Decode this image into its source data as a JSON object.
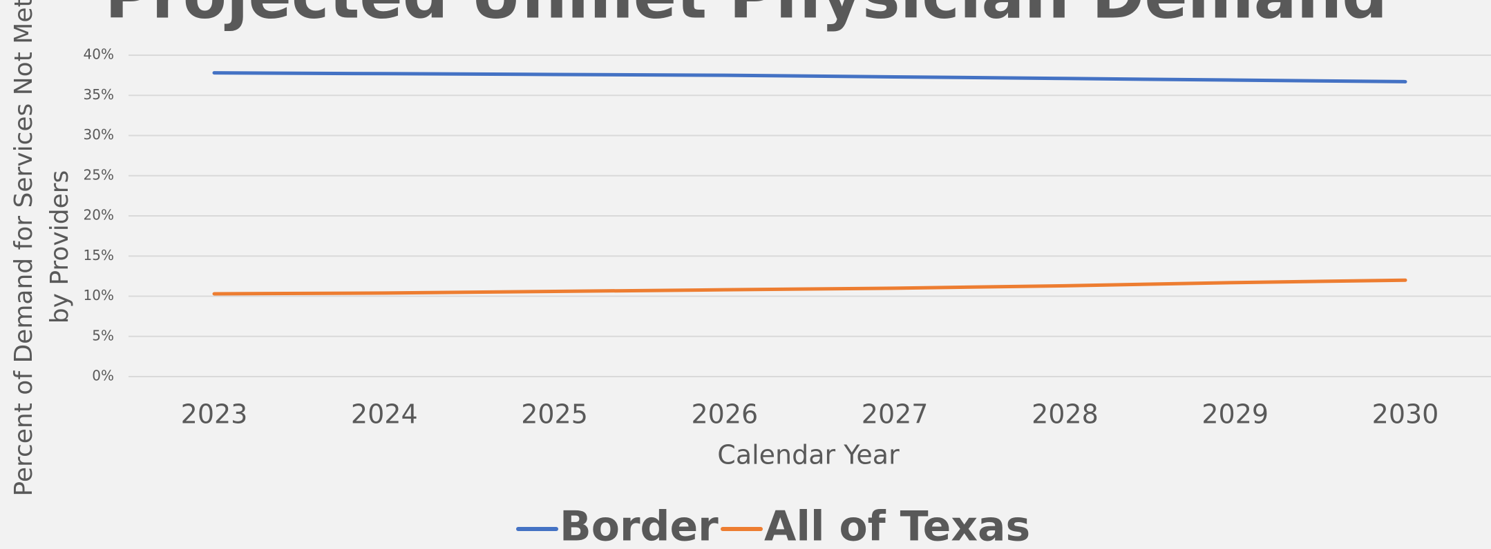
{
  "chart_data": {
    "type": "line",
    "title": "Projected Unmet Physician Demand",
    "x_label": "Calendar Year",
    "y_label": [
      "Percent of Demand for Services Not Met",
      "by Providers"
    ],
    "categories": [
      "2023",
      "2024",
      "2025",
      "2026",
      "2027",
      "2028",
      "2029",
      "2030"
    ],
    "series": [
      {
        "name": "Border",
        "color": "#4472c4",
        "values": [
          37.8,
          37.7,
          37.6,
          37.5,
          37.3,
          37.1,
          36.9,
          36.7
        ]
      },
      {
        "name": "All of Texas",
        "color": "#ed7d31",
        "values": [
          10.3,
          10.4,
          10.6,
          10.8,
          11.0,
          11.3,
          11.7,
          12.0
        ]
      }
    ],
    "ylim": [
      0,
      40
    ],
    "yticks": [
      {
        "value": 0,
        "label": "0%"
      },
      {
        "value": 5,
        "label": "5%"
      },
      {
        "value": 10,
        "label": "10%"
      },
      {
        "value": 15,
        "label": "15%"
      },
      {
        "value": 20,
        "label": "20%"
      },
      {
        "value": 25,
        "label": "25%"
      },
      {
        "value": 30,
        "label": "30%"
      },
      {
        "value": 35,
        "label": "35%"
      },
      {
        "value": 40,
        "label": "40%"
      }
    ],
    "grid": true,
    "legend": "bottom"
  }
}
